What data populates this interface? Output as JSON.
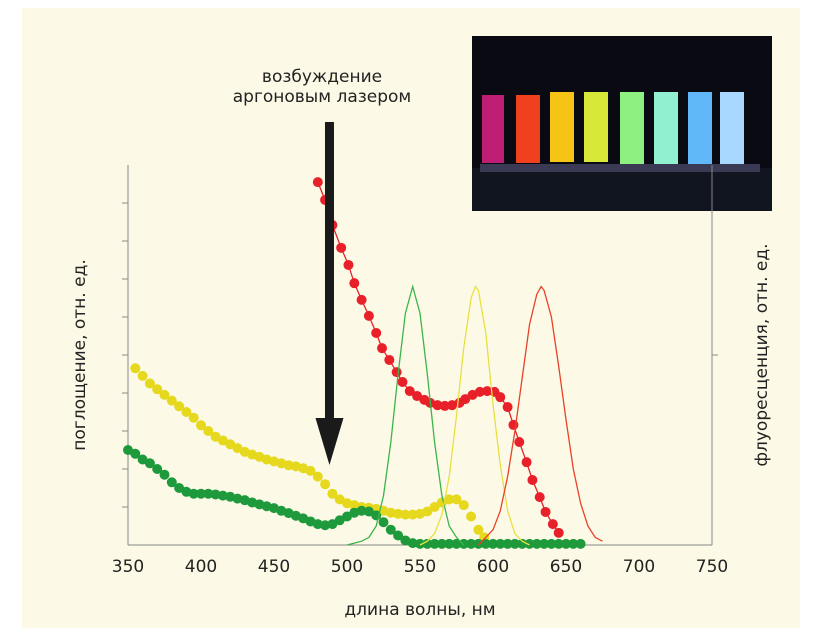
{
  "chart_data": {
    "type": "line",
    "annotation": [
      "возбуждение",
      "аргоновым лазером"
    ],
    "excitation_x": 488,
    "xlabel": "длина волны, нм",
    "ylabel": "поглощение, отн. ед.",
    "y2label": "флуоресценция, отн. ед.",
    "xlim": [
      350,
      750
    ],
    "xticks": [
      350,
      400,
      450,
      500,
      550,
      600,
      650,
      700,
      750
    ],
    "ylim": [
      0,
      10
    ],
    "yticks": [
      1,
      2,
      3,
      4,
      5,
      6,
      7,
      8,
      9
    ],
    "y2lim": [
      0,
      1
    ],
    "y2ticks": [
      0.5
    ],
    "series": [
      {
        "color": "#e8202a",
        "marker": true,
        "line": true,
        "x": [
          480,
          485,
          490,
          496,
          501,
          505,
          510,
          515,
          520,
          524,
          529,
          534,
          538,
          543,
          548,
          553,
          557,
          562,
          567,
          572,
          577,
          581,
          586,
          591,
          596,
          601,
          605,
          610,
          614,
          618,
          623,
          627,
          632,
          636,
          641,
          645
        ],
        "values": [
          9.55,
          9.08,
          8.42,
          7.82,
          7.37,
          6.89,
          6.45,
          6.03,
          5.58,
          5.18,
          4.87,
          4.55,
          4.29,
          4.05,
          3.92,
          3.82,
          3.74,
          3.68,
          3.66,
          3.68,
          3.74,
          3.84,
          3.95,
          4.03,
          4.05,
          4.03,
          3.89,
          3.63,
          3.16,
          2.71,
          2.18,
          1.71,
          1.26,
          0.87,
          0.55,
          0.32
        ]
      },
      {
        "color": "#e6d81c",
        "marker": true,
        "line": false,
        "x": [
          355,
          360,
          365,
          370,
          375,
          380,
          385,
          390,
          395,
          400,
          405,
          410,
          415,
          420,
          425,
          430,
          435,
          440,
          445,
          450,
          455,
          460,
          465,
          470,
          475,
          480,
          485,
          490,
          495,
          500,
          505,
          510,
          515,
          520,
          525,
          530,
          535,
          540,
          545,
          550,
          555,
          560,
          565,
          570,
          575,
          580,
          585,
          590,
          594
        ],
        "values": [
          4.65,
          4.45,
          4.25,
          4.1,
          3.95,
          3.8,
          3.65,
          3.5,
          3.35,
          3.15,
          3.0,
          2.85,
          2.75,
          2.65,
          2.55,
          2.45,
          2.38,
          2.32,
          2.25,
          2.2,
          2.15,
          2.1,
          2.07,
          2.02,
          1.95,
          1.8,
          1.6,
          1.35,
          1.2,
          1.1,
          1.05,
          1.0,
          0.98,
          0.95,
          0.9,
          0.85,
          0.82,
          0.8,
          0.8,
          0.82,
          0.88,
          1.0,
          1.12,
          1.2,
          1.2,
          1.05,
          0.75,
          0.4,
          0.2
        ]
      },
      {
        "color": "#1e9a3c",
        "marker": true,
        "line": false,
        "x": [
          350,
          355,
          360,
          365,
          370,
          375,
          380,
          385,
          390,
          395,
          400,
          405,
          410,
          415,
          420,
          425,
          430,
          435,
          440,
          445,
          450,
          455,
          460,
          465,
          470,
          475,
          480,
          485,
          490,
          495,
          500,
          505,
          510,
          515,
          520,
          525,
          530,
          535,
          540,
          545,
          550,
          555,
          560,
          565,
          570,
          575,
          580,
          585,
          590,
          595,
          600,
          605,
          610,
          615,
          620,
          625,
          630,
          635,
          640,
          645,
          650,
          655,
          660
        ],
        "values": [
          2.5,
          2.4,
          2.25,
          2.15,
          2.0,
          1.85,
          1.65,
          1.5,
          1.4,
          1.35,
          1.35,
          1.35,
          1.33,
          1.3,
          1.27,
          1.22,
          1.18,
          1.12,
          1.07,
          1.02,
          0.97,
          0.9,
          0.84,
          0.77,
          0.7,
          0.62,
          0.55,
          0.52,
          0.55,
          0.65,
          0.75,
          0.85,
          0.9,
          0.88,
          0.78,
          0.6,
          0.4,
          0.25,
          0.12,
          0.05,
          0.03,
          0.03,
          0.03,
          0.03,
          0.03,
          0.03,
          0.03,
          0.03,
          0.03,
          0.03,
          0.03,
          0.03,
          0.03,
          0.03,
          0.03,
          0.03,
          0.03,
          0.03,
          0.03,
          0.03,
          0.03,
          0.03,
          0.03
        ]
      },
      {
        "color": "#3ab54a",
        "marker": false,
        "line": true,
        "axis": "y2",
        "x": [
          500,
          505,
          510,
          515,
          520,
          525,
          530,
          535,
          540,
          545,
          550,
          555,
          560,
          565,
          570,
          575,
          580
        ],
        "values": [
          0,
          0.005,
          0.01,
          0.02,
          0.05,
          0.13,
          0.27,
          0.45,
          0.61,
          0.68,
          0.61,
          0.45,
          0.27,
          0.13,
          0.05,
          0.02,
          0
        ]
      },
      {
        "color": "#e8e040",
        "marker": false,
        "line": true,
        "axis": "y2",
        "x": [
          550,
          555,
          560,
          565,
          570,
          575,
          580,
          585,
          588,
          590,
          595,
          600,
          605,
          610,
          615,
          620,
          625
        ],
        "values": [
          0,
          0.01,
          0.03,
          0.08,
          0.18,
          0.34,
          0.52,
          0.65,
          0.68,
          0.67,
          0.56,
          0.37,
          0.21,
          0.09,
          0.03,
          0.01,
          0
        ]
      },
      {
        "color": "#e8412a",
        "marker": false,
        "line": true,
        "axis": "y2",
        "x": [
          590,
          595,
          600,
          605,
          610,
          615,
          620,
          625,
          630,
          633,
          635,
          640,
          645,
          650,
          655,
          660,
          665,
          670,
          675
        ],
        "values": [
          0,
          0.02,
          0.04,
          0.09,
          0.18,
          0.3,
          0.44,
          0.58,
          0.66,
          0.68,
          0.67,
          0.6,
          0.47,
          0.33,
          0.2,
          0.11,
          0.05,
          0.02,
          0.01
        ]
      }
    ]
  }
}
